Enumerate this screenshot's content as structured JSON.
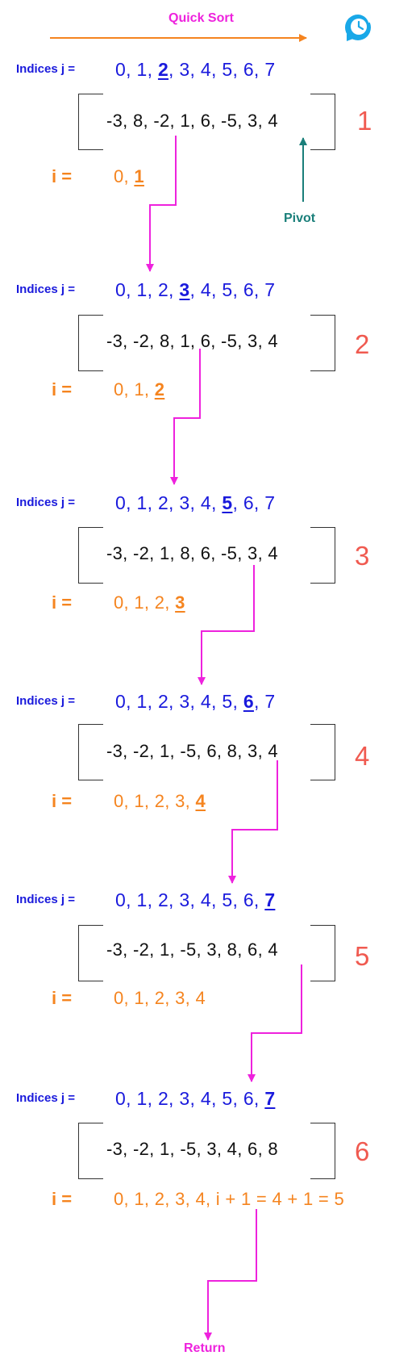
{
  "title": "Quick Sort",
  "steps": [
    {
      "step": "1",
      "j_label": "Indices j =",
      "j_before": "0, 1, ",
      "j_current": "2",
      "j_after": ", 3, 4, 5, 6, 7",
      "array": "-3, 8, -2, 1, 6, -5, 3, 4",
      "i_label": "i =",
      "i_before": "0, ",
      "i_current": "1",
      "i_after": ""
    },
    {
      "step": "2",
      "j_label": "Indices j =",
      "j_before": "0, 1, 2, ",
      "j_current": "3",
      "j_after": ", 4, 5, 6, 7",
      "array": "-3, -2, 8, 1, 6, -5, 3, 4",
      "i_label": "i =",
      "i_before": "0, 1, ",
      "i_current": "2",
      "i_after": ""
    },
    {
      "step": "3",
      "j_label": "Indices j =",
      "j_before": "0, 1, 2, 3, 4, ",
      "j_current": "5",
      "j_after": ", 6, 7",
      "array": "-3, -2, 1, 8, 6, -5, 3, 4",
      "i_label": "i =",
      "i_before": "0, 1, 2, ",
      "i_current": "3",
      "i_after": ""
    },
    {
      "step": "4",
      "j_label": "Indices j =",
      "j_before": "0, 1, 2, 3, 4, 5, ",
      "j_current": "6",
      "j_after": ", 7",
      "array": "-3, -2, 1, -5, 6, 8, 3, 4",
      "i_label": "i =",
      "i_before": "0, 1, 2, 3, ",
      "i_current": "4",
      "i_after": ""
    },
    {
      "step": "5",
      "j_label": "Indices j =",
      "j_before": "0, 1, 2, 3, 4, 5, 6, ",
      "j_current": "7",
      "j_after": "",
      "array": "-3, -2, 1, -5, 3, 8, 6, 4",
      "i_label": "i =",
      "i_before": "0, 1, 2, 3, 4",
      "i_current": "",
      "i_after": ""
    },
    {
      "step": "6",
      "j_label": "Indices j =",
      "j_before": "0, 1, 2, 3, 4, 5, 6, ",
      "j_current": "7",
      "j_after": "",
      "array": "-3, -2, 1, -5, 3, 4, 6, 8",
      "i_label": "i =",
      "i_before": "0, 1, 2, 3, 4, i + 1 = 4 + 1 = 5",
      "i_current": "",
      "i_after": ""
    }
  ],
  "pivot_label": "Pivot",
  "return_label": "Return",
  "colors": {
    "title": "#ee22dd",
    "indices": "#1a1adc",
    "i_values": "#f5841f",
    "step_number": "#f05a50",
    "pivot": "#1a7f7a",
    "flow_arrow": "#ee22dd",
    "header_arrow": "#f5841f",
    "icon": "#19a8e8"
  },
  "icons": {
    "corner_icon": "clock-refresh-icon"
  }
}
